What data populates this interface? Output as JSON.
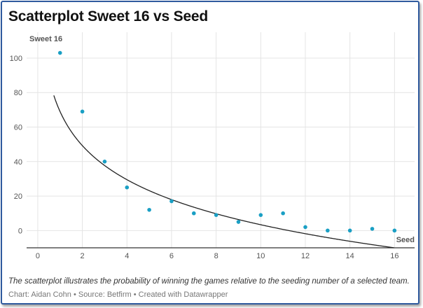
{
  "title": "Scatterplot Sweet 16 vs Seed",
  "description": "The scatterplot illustrates the probability of winning the games relative to the seeding number of a selected team.",
  "credits": "Chart: Aidan Cohn • Source: Betfirm • Created with Datawrapper",
  "colors": {
    "point": "#1a9fc4",
    "curve": "#222222",
    "grid": "#e4e4e4",
    "baseline": "#333333",
    "frame": "#2f5a9e"
  },
  "chart_data": {
    "type": "scatter",
    "xlabel": "Seed",
    "ylabel": "Sweet 16",
    "xlim": [
      -0.5,
      16.9
    ],
    "ylim": [
      -10,
      115
    ],
    "xticks": [
      0,
      2,
      4,
      6,
      8,
      10,
      12,
      14,
      16
    ],
    "yticks": [
      0,
      20,
      40,
      60,
      80,
      100
    ],
    "grid": true,
    "series": [
      {
        "x": [
          1,
          2,
          3,
          4,
          5,
          6,
          7,
          8,
          9,
          10,
          11,
          12,
          13,
          14,
          15,
          16
        ],
        "y": [
          103,
          69,
          40,
          25,
          12,
          17,
          10,
          9,
          5,
          9,
          10,
          2,
          0,
          0,
          1,
          0
        ]
      }
    ],
    "trendline": {
      "type": "logarithmic",
      "equation": "y = 69 - 28.5 * ln(x)"
    }
  }
}
